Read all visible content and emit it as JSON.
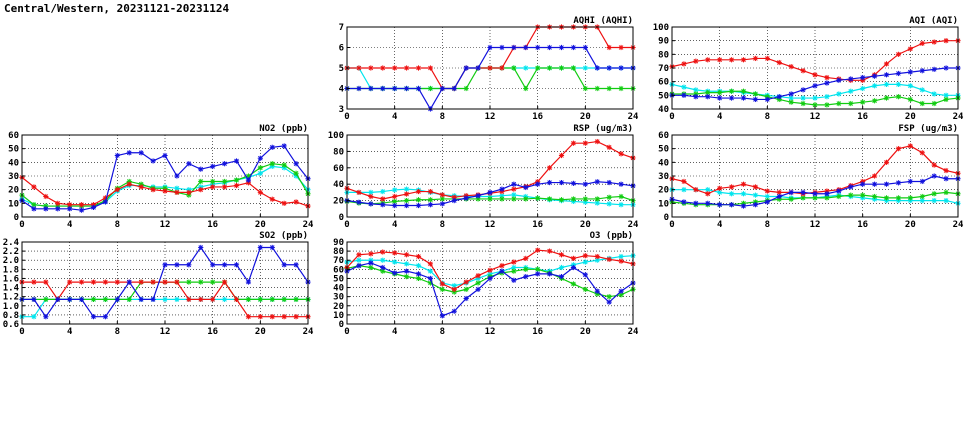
{
  "page": {
    "title": "Central/Western, 20231121-20231124"
  },
  "colors": {
    "red": "#ee1111",
    "blue": "#1111dd",
    "green": "#11cc11",
    "cyan": "#00e5ee"
  },
  "chart_data": [
    {
      "id": "aqhi",
      "type": "line",
      "title": "AQHI (AQHI)",
      "x": [
        0,
        1,
        2,
        3,
        4,
        5,
        6,
        7,
        8,
        9,
        10,
        11,
        12,
        13,
        14,
        15,
        16,
        17,
        18,
        19,
        20,
        21,
        22,
        23,
        24
      ],
      "xlim": [
        0,
        24
      ],
      "xticks": [
        0,
        4,
        8,
        12,
        16,
        20,
        24
      ],
      "ylim": [
        3,
        7
      ],
      "yticks": [
        3,
        4,
        5,
        6,
        7
      ],
      "grid": true,
      "series": [
        {
          "color": "#00e5ee",
          "values": [
            5,
            5,
            4,
            4,
            4,
            4,
            4,
            4,
            4,
            4,
            5,
            5,
            5,
            5,
            5,
            5,
            5,
            5,
            5,
            5,
            5,
            5,
            5,
            5,
            5
          ]
        },
        {
          "color": "#11cc11",
          "values": [
            4,
            4,
            4,
            4,
            4,
            4,
            4,
            4,
            4,
            4,
            4,
            5,
            5,
            5,
            5,
            4,
            5,
            5,
            5,
            5,
            4,
            4,
            4,
            4,
            4
          ]
        },
        {
          "color": "#ee1111",
          "values": [
            5,
            5,
            5,
            5,
            5,
            5,
            5,
            5,
            4,
            4,
            5,
            5,
            5,
            5,
            6,
            6,
            7,
            7,
            7,
            7,
            7,
            7,
            6,
            6,
            6
          ]
        },
        {
          "color": "#1111dd",
          "values": [
            4,
            4,
            4,
            4,
            4,
            4,
            4,
            3,
            4,
            4,
            5,
            5,
            6,
            6,
            6,
            6,
            6,
            6,
            6,
            6,
            6,
            5,
            5,
            5,
            5
          ]
        }
      ]
    },
    {
      "id": "aqi",
      "type": "line",
      "title": "AQI (AQI)",
      "x": [
        0,
        1,
        2,
        3,
        4,
        5,
        6,
        7,
        8,
        9,
        10,
        11,
        12,
        13,
        14,
        15,
        16,
        17,
        18,
        19,
        20,
        21,
        22,
        23,
        24
      ],
      "xlim": [
        0,
        24
      ],
      "xticks": [
        0,
        4,
        8,
        12,
        16,
        20,
        24
      ],
      "ylim": [
        40,
        100
      ],
      "yticks": [
        40,
        50,
        60,
        70,
        80,
        90,
        100
      ],
      "grid": true,
      "series": [
        {
          "color": "#00e5ee",
          "values": [
            58,
            56,
            54,
            53,
            53,
            53,
            52,
            51,
            50,
            49,
            48,
            48,
            48,
            49,
            51,
            53,
            55,
            57,
            58,
            58,
            57,
            54,
            51,
            50,
            50
          ]
        },
        {
          "color": "#11cc11",
          "values": [
            51,
            51,
            51,
            52,
            52,
            53,
            53,
            51,
            49,
            47,
            45,
            44,
            43,
            43,
            44,
            44,
            45,
            46,
            48,
            49,
            47,
            44,
            44,
            47,
            48
          ]
        },
        {
          "color": "#ee1111",
          "values": [
            71,
            73,
            75,
            76,
            76,
            76,
            76,
            77,
            77,
            74,
            71,
            68,
            65,
            63,
            62,
            61,
            61,
            65,
            73,
            80,
            84,
            88,
            89,
            90,
            90
          ]
        },
        {
          "color": "#1111dd",
          "values": [
            50,
            50,
            49,
            49,
            48,
            48,
            48,
            47,
            47,
            49,
            51,
            54,
            57,
            59,
            61,
            62,
            63,
            64,
            65,
            66,
            67,
            68,
            69,
            70,
            70
          ]
        }
      ]
    },
    {
      "id": "no2",
      "type": "line",
      "title": "NO2 (ppb)",
      "x": [
        0,
        1,
        2,
        3,
        4,
        5,
        6,
        7,
        8,
        9,
        10,
        11,
        12,
        13,
        14,
        15,
        16,
        17,
        18,
        19,
        20,
        21,
        22,
        23,
        24
      ],
      "xlim": [
        0,
        24
      ],
      "xticks": [
        0,
        4,
        8,
        12,
        16,
        20,
        24
      ],
      "ylim": [
        0,
        60
      ],
      "yticks": [
        0,
        10,
        20,
        30,
        40,
        50,
        60
      ],
      "grid": true,
      "series": [
        {
          "color": "#00e5ee",
          "values": [
            13,
            9,
            8,
            8,
            8,
            8,
            8,
            11,
            19,
            23,
            23,
            22,
            22,
            21,
            20,
            22,
            24,
            25,
            27,
            29,
            32,
            37,
            36,
            30,
            20
          ]
        },
        {
          "color": "#11cc11",
          "values": [
            16,
            9,
            8,
            8,
            8,
            8,
            8,
            12,
            21,
            26,
            24,
            21,
            21,
            18,
            16,
            26,
            26,
            26,
            27,
            30,
            36,
            39,
            38,
            32,
            17
          ]
        },
        {
          "color": "#ee1111",
          "values": [
            29,
            22,
            15,
            10,
            9,
            9,
            9,
            14,
            20,
            24,
            22,
            20,
            19,
            18,
            18,
            20,
            22,
            22,
            23,
            25,
            18,
            13,
            10,
            11,
            8
          ]
        },
        {
          "color": "#1111dd",
          "values": [
            12,
            6,
            6,
            6,
            6,
            5,
            7,
            11,
            45,
            47,
            47,
            41,
            45,
            30,
            39,
            35,
            37,
            39,
            41,
            27,
            43,
            51,
            52,
            39,
            28
          ]
        }
      ]
    },
    {
      "id": "rsp",
      "type": "line",
      "title": "RSP (ug/m3)",
      "x": [
        0,
        1,
        2,
        3,
        4,
        5,
        6,
        7,
        8,
        9,
        10,
        11,
        12,
        13,
        14,
        15,
        16,
        17,
        18,
        19,
        20,
        21,
        22,
        23,
        24
      ],
      "xlim": [
        0,
        24
      ],
      "xticks": [
        0,
        4,
        8,
        12,
        16,
        20,
        24
      ],
      "ylim": [
        0,
        100
      ],
      "yticks": [
        0,
        20,
        40,
        60,
        80,
        100
      ],
      "grid": true,
      "series": [
        {
          "color": "#00e5ee",
          "values": [
            30,
            30,
            30,
            31,
            33,
            34,
            33,
            30,
            27,
            26,
            25,
            25,
            25,
            26,
            27,
            25,
            23,
            21,
            20,
            19,
            18,
            17,
            16,
            15,
            15
          ]
        },
        {
          "color": "#11cc11",
          "values": [
            19,
            17,
            16,
            17,
            19,
            20,
            21,
            21,
            22,
            22,
            22,
            22,
            22,
            22,
            22,
            22,
            23,
            22,
            21,
            22,
            22,
            22,
            24,
            25,
            20
          ]
        },
        {
          "color": "#ee1111",
          "values": [
            35,
            30,
            25,
            22,
            25,
            28,
            31,
            31,
            27,
            24,
            26,
            27,
            29,
            31,
            34,
            37,
            43,
            60,
            75,
            90,
            90,
            92,
            85,
            77,
            72
          ]
        },
        {
          "color": "#1111dd",
          "values": [
            20,
            18,
            16,
            15,
            14,
            14,
            14,
            15,
            16,
            20,
            23,
            26,
            30,
            34,
            40,
            36,
            40,
            42,
            42,
            41,
            40,
            43,
            42,
            40,
            38
          ]
        }
      ]
    },
    {
      "id": "fsp",
      "type": "line",
      "title": "FSP (ug/m3)",
      "x": [
        0,
        1,
        2,
        3,
        4,
        5,
        6,
        7,
        8,
        9,
        10,
        11,
        12,
        13,
        14,
        15,
        16,
        17,
        18,
        19,
        20,
        21,
        22,
        23,
        24
      ],
      "xlim": [
        0,
        24
      ],
      "xticks": [
        0,
        4,
        8,
        12,
        16,
        20,
        24
      ],
      "ylim": [
        0,
        60
      ],
      "yticks": [
        0,
        10,
        20,
        30,
        40,
        50,
        60
      ],
      "grid": true,
      "series": [
        {
          "color": "#00e5ee",
          "values": [
            20,
            20,
            20,
            20,
            18,
            17,
            17,
            16,
            15,
            15,
            14,
            14,
            14,
            15,
            16,
            15,
            14,
            13,
            12,
            12,
            12,
            12,
            12,
            12,
            10
          ]
        },
        {
          "color": "#11cc11",
          "values": [
            11,
            10,
            9,
            9,
            9,
            9,
            10,
            11,
            12,
            13,
            13,
            14,
            14,
            14,
            15,
            16,
            16,
            15,
            14,
            14,
            14,
            15,
            17,
            18,
            17
          ]
        },
        {
          "color": "#ee1111",
          "values": [
            28,
            26,
            20,
            17,
            21,
            22,
            24,
            22,
            19,
            18,
            18,
            17,
            18,
            19,
            20,
            23,
            26,
            30,
            40,
            50,
            52,
            47,
            38,
            34,
            32
          ]
        },
        {
          "color": "#1111dd",
          "values": [
            13,
            11,
            10,
            10,
            9,
            9,
            8,
            9,
            11,
            15,
            18,
            18,
            17,
            17,
            19,
            22,
            24,
            24,
            24,
            25,
            26,
            26,
            30,
            28,
            28
          ]
        }
      ]
    },
    {
      "id": "so2",
      "type": "line",
      "title": "SO2 (ppb)",
      "x": [
        0,
        1,
        2,
        3,
        4,
        5,
        6,
        7,
        8,
        9,
        10,
        11,
        12,
        13,
        14,
        15,
        16,
        17,
        18,
        19,
        20,
        21,
        22,
        23,
        24
      ],
      "xlim": [
        0,
        24
      ],
      "xticks": [
        0,
        4,
        8,
        12,
        16,
        20,
        24
      ],
      "ylim": [
        0.6,
        2.4
      ],
      "yticks": [
        0.6,
        0.8,
        1.0,
        1.2,
        1.4,
        1.6,
        1.8,
        2.0,
        2.2,
        2.4
      ],
      "grid": true,
      "series": [
        {
          "color": "#00e5ee",
          "values": [
            0.76,
            0.76,
            1.14,
            1.14,
            1.14,
            1.14,
            1.14,
            1.14,
            1.14,
            1.14,
            1.14,
            1.14,
            1.14,
            1.14,
            1.14,
            1.14,
            1.14,
            1.14,
            1.14,
            1.14,
            1.14,
            1.14,
            1.14,
            1.14,
            1.14
          ]
        },
        {
          "color": "#11cc11",
          "values": [
            1.14,
            1.14,
            1.14,
            1.14,
            1.14,
            1.14,
            1.14,
            1.14,
            1.14,
            1.14,
            1.52,
            1.52,
            1.52,
            1.52,
            1.52,
            1.52,
            1.52,
            1.52,
            1.14,
            1.14,
            1.14,
            1.14,
            1.14,
            1.14,
            1.14
          ]
        },
        {
          "color": "#ee1111",
          "values": [
            1.52,
            1.52,
            1.52,
            1.14,
            1.52,
            1.52,
            1.52,
            1.52,
            1.52,
            1.52,
            1.52,
            1.52,
            1.52,
            1.52,
            1.14,
            1.14,
            1.14,
            1.52,
            1.14,
            0.76,
            0.76,
            0.76,
            0.76,
            0.76,
            0.76
          ]
        },
        {
          "color": "#1111dd",
          "values": [
            1.14,
            1.14,
            0.76,
            1.14,
            1.14,
            1.14,
            0.76,
            0.76,
            1.14,
            1.52,
            1.14,
            1.14,
            1.9,
            1.9,
            1.9,
            2.28,
            1.9,
            1.9,
            1.9,
            1.52,
            2.28,
            2.28,
            1.9,
            1.9,
            1.52
          ]
        }
      ]
    },
    {
      "id": "o3",
      "type": "line",
      "title": "O3 (ppb)",
      "x": [
        0,
        1,
        2,
        3,
        4,
        5,
        6,
        7,
        8,
        9,
        10,
        11,
        12,
        13,
        14,
        15,
        16,
        17,
        18,
        19,
        20,
        21,
        22,
        23,
        24
      ],
      "xlim": [
        0,
        24
      ],
      "xticks": [
        0,
        4,
        8,
        12,
        16,
        20,
        24
      ],
      "ylim": [
        0,
        90
      ],
      "yticks": [
        0,
        10,
        20,
        30,
        40,
        50,
        60,
        70,
        80,
        90
      ],
      "grid": true,
      "series": [
        {
          "color": "#00e5ee",
          "values": [
            68,
            70,
            70,
            70,
            68,
            66,
            64,
            58,
            45,
            42,
            45,
            50,
            55,
            58,
            62,
            62,
            60,
            58,
            62,
            65,
            68,
            70,
            72,
            74,
            75
          ]
        },
        {
          "color": "#11cc11",
          "values": [
            61,
            64,
            62,
            58,
            55,
            52,
            50,
            45,
            38,
            35,
            38,
            45,
            52,
            56,
            58,
            60,
            60,
            56,
            50,
            44,
            38,
            33,
            30,
            32,
            38
          ]
        },
        {
          "color": "#ee1111",
          "values": [
            62,
            76,
            77,
            79,
            78,
            76,
            74,
            66,
            44,
            38,
            46,
            53,
            59,
            64,
            68,
            72,
            81,
            80,
            76,
            72,
            75,
            74,
            71,
            69,
            66
          ]
        },
        {
          "color": "#1111dd",
          "values": [
            58,
            64,
            67,
            62,
            56,
            58,
            55,
            50,
            9,
            14,
            28,
            38,
            50,
            58,
            48,
            52,
            55,
            55,
            52,
            62,
            54,
            36,
            24,
            36,
            45
          ]
        }
      ]
    }
  ]
}
